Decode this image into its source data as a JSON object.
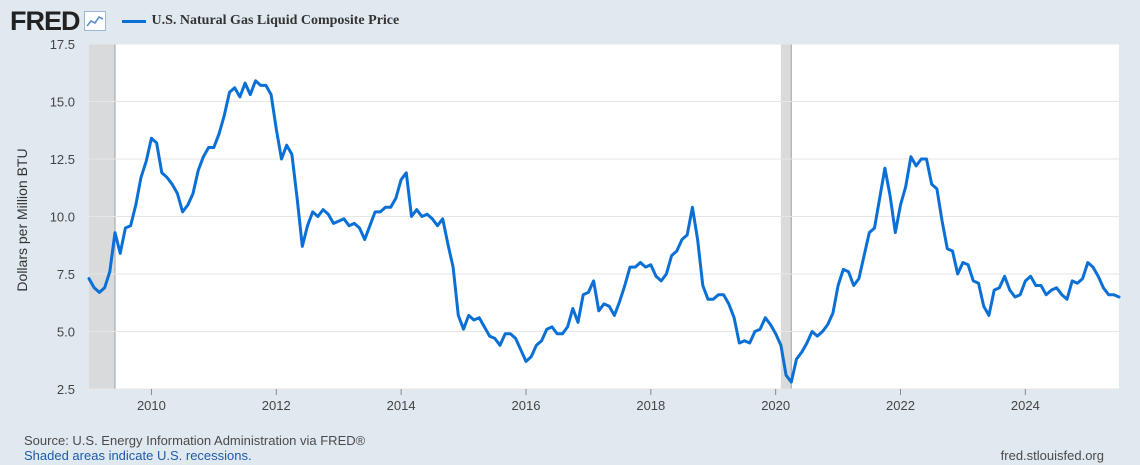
{
  "header": {
    "logo": "FRED",
    "logo_icon": "line-chart-icon"
  },
  "colors": {
    "series": "#0b70d6",
    "recession": "#d9dadb",
    "background": "#e1e9f0",
    "plot": "#ffffff"
  },
  "chart_data": {
    "type": "line",
    "series": [
      {
        "name": "U.S. Natural Gas Liquid Composite Price"
      }
    ],
    "ylabel": "Dollars per Million BTU",
    "xlabel": "",
    "ylim": [
      2.5,
      17.5
    ],
    "xlim": [
      "2009-01",
      "2025-07"
    ],
    "yticks": [
      "2.5",
      "5.0",
      "7.5",
      "10.0",
      "12.5",
      "15.0",
      "17.5"
    ],
    "xticks": [
      "2010",
      "2012",
      "2014",
      "2016",
      "2018",
      "2020",
      "2022",
      "2024"
    ],
    "grid": true,
    "recessions": [
      [
        "2009-01",
        "2009-06"
      ],
      [
        "2020-02",
        "2020-04"
      ]
    ],
    "points": [
      [
        "2009-01",
        7.3
      ],
      [
        "2009-02",
        6.9
      ],
      [
        "2009-03",
        6.7
      ],
      [
        "2009-04",
        6.9
      ],
      [
        "2009-05",
        7.6
      ],
      [
        "2009-06",
        9.3
      ],
      [
        "2009-07",
        8.4
      ],
      [
        "2009-08",
        9.5
      ],
      [
        "2009-09",
        9.6
      ],
      [
        "2009-10",
        10.5
      ],
      [
        "2009-11",
        11.7
      ],
      [
        "2009-12",
        12.4
      ],
      [
        "2010-01",
        13.4
      ],
      [
        "2010-02",
        13.2
      ],
      [
        "2010-03",
        11.9
      ],
      [
        "2010-04",
        11.7
      ],
      [
        "2010-05",
        11.4
      ],
      [
        "2010-06",
        11.0
      ],
      [
        "2010-07",
        10.2
      ],
      [
        "2010-08",
        10.5
      ],
      [
        "2010-09",
        11.0
      ],
      [
        "2010-10",
        12.0
      ],
      [
        "2010-11",
        12.6
      ],
      [
        "2010-12",
        13.0
      ],
      [
        "2011-01",
        13.0
      ],
      [
        "2011-02",
        13.6
      ],
      [
        "2011-03",
        14.4
      ],
      [
        "2011-04",
        15.4
      ],
      [
        "2011-05",
        15.6
      ],
      [
        "2011-06",
        15.2
      ],
      [
        "2011-07",
        15.8
      ],
      [
        "2011-08",
        15.3
      ],
      [
        "2011-09",
        15.9
      ],
      [
        "2011-10",
        15.7
      ],
      [
        "2011-11",
        15.7
      ],
      [
        "2011-12",
        15.3
      ],
      [
        "2012-01",
        13.8
      ],
      [
        "2012-02",
        12.5
      ],
      [
        "2012-03",
        13.1
      ],
      [
        "2012-04",
        12.7
      ],
      [
        "2012-05",
        10.8
      ],
      [
        "2012-06",
        8.7
      ],
      [
        "2012-07",
        9.6
      ],
      [
        "2012-08",
        10.2
      ],
      [
        "2012-09",
        10.0
      ],
      [
        "2012-10",
        10.3
      ],
      [
        "2012-11",
        10.1
      ],
      [
        "2012-12",
        9.7
      ],
      [
        "2013-01",
        9.8
      ],
      [
        "2013-02",
        9.9
      ],
      [
        "2013-03",
        9.6
      ],
      [
        "2013-04",
        9.7
      ],
      [
        "2013-05",
        9.5
      ],
      [
        "2013-06",
        9.0
      ],
      [
        "2013-07",
        9.6
      ],
      [
        "2013-08",
        10.2
      ],
      [
        "2013-09",
        10.2
      ],
      [
        "2013-10",
        10.4
      ],
      [
        "2013-11",
        10.4
      ],
      [
        "2013-12",
        10.8
      ],
      [
        "2014-01",
        11.6
      ],
      [
        "2014-02",
        11.9
      ],
      [
        "2014-03",
        10.0
      ],
      [
        "2014-04",
        10.3
      ],
      [
        "2014-05",
        10.0
      ],
      [
        "2014-06",
        10.1
      ],
      [
        "2014-07",
        9.9
      ],
      [
        "2014-08",
        9.6
      ],
      [
        "2014-09",
        9.9
      ],
      [
        "2014-10",
        8.8
      ],
      [
        "2014-11",
        7.8
      ],
      [
        "2014-12",
        5.7
      ],
      [
        "2015-01",
        5.1
      ],
      [
        "2015-02",
        5.7
      ],
      [
        "2015-03",
        5.5
      ],
      [
        "2015-04",
        5.6
      ],
      [
        "2015-05",
        5.2
      ],
      [
        "2015-06",
        4.8
      ],
      [
        "2015-07",
        4.7
      ],
      [
        "2015-08",
        4.4
      ],
      [
        "2015-09",
        4.9
      ],
      [
        "2015-10",
        4.9
      ],
      [
        "2015-11",
        4.7
      ],
      [
        "2015-12",
        4.2
      ],
      [
        "2016-01",
        3.7
      ],
      [
        "2016-02",
        3.9
      ],
      [
        "2016-03",
        4.4
      ],
      [
        "2016-04",
        4.6
      ],
      [
        "2016-05",
        5.1
      ],
      [
        "2016-06",
        5.2
      ],
      [
        "2016-07",
        4.9
      ],
      [
        "2016-08",
        4.9
      ],
      [
        "2016-09",
        5.2
      ],
      [
        "2016-10",
        6.0
      ],
      [
        "2016-11",
        5.4
      ],
      [
        "2016-12",
        6.6
      ],
      [
        "2017-01",
        6.7
      ],
      [
        "2017-02",
        7.2
      ],
      [
        "2017-03",
        5.9
      ],
      [
        "2017-04",
        6.2
      ],
      [
        "2017-05",
        6.1
      ],
      [
        "2017-06",
        5.7
      ],
      [
        "2017-07",
        6.3
      ],
      [
        "2017-08",
        7.0
      ],
      [
        "2017-09",
        7.8
      ],
      [
        "2017-10",
        7.8
      ],
      [
        "2017-11",
        8.0
      ],
      [
        "2017-12",
        7.8
      ],
      [
        "2018-01",
        7.9
      ],
      [
        "2018-02",
        7.4
      ],
      [
        "2018-03",
        7.2
      ],
      [
        "2018-04",
        7.5
      ],
      [
        "2018-05",
        8.3
      ],
      [
        "2018-06",
        8.5
      ],
      [
        "2018-07",
        9.0
      ],
      [
        "2018-08",
        9.2
      ],
      [
        "2018-09",
        10.4
      ],
      [
        "2018-10",
        9.0
      ],
      [
        "2018-11",
        7.0
      ],
      [
        "2018-12",
        6.4
      ],
      [
        "2019-01",
        6.4
      ],
      [
        "2019-02",
        6.6
      ],
      [
        "2019-03",
        6.6
      ],
      [
        "2019-04",
        6.2
      ],
      [
        "2019-05",
        5.6
      ],
      [
        "2019-06",
        4.5
      ],
      [
        "2019-07",
        4.6
      ],
      [
        "2019-08",
        4.5
      ],
      [
        "2019-09",
        5.0
      ],
      [
        "2019-10",
        5.1
      ],
      [
        "2019-11",
        5.6
      ],
      [
        "2019-12",
        5.3
      ],
      [
        "2020-01",
        4.9
      ],
      [
        "2020-02",
        4.4
      ],
      [
        "2020-03",
        3.1
      ],
      [
        "2020-04",
        2.8
      ],
      [
        "2020-05",
        3.8
      ],
      [
        "2020-06",
        4.1
      ],
      [
        "2020-07",
        4.5
      ],
      [
        "2020-08",
        5.0
      ],
      [
        "2020-09",
        4.8
      ],
      [
        "2020-10",
        5.0
      ],
      [
        "2020-11",
        5.3
      ],
      [
        "2020-12",
        5.8
      ],
      [
        "2021-01",
        7.0
      ],
      [
        "2021-02",
        7.7
      ],
      [
        "2021-03",
        7.6
      ],
      [
        "2021-04",
        7.0
      ],
      [
        "2021-05",
        7.3
      ],
      [
        "2021-06",
        8.3
      ],
      [
        "2021-07",
        9.3
      ],
      [
        "2021-08",
        9.5
      ],
      [
        "2021-09",
        10.8
      ],
      [
        "2021-10",
        12.1
      ],
      [
        "2021-11",
        10.9
      ],
      [
        "2021-12",
        9.3
      ],
      [
        "2022-01",
        10.5
      ],
      [
        "2022-02",
        11.3
      ],
      [
        "2022-03",
        12.6
      ],
      [
        "2022-04",
        12.2
      ],
      [
        "2022-05",
        12.5
      ],
      [
        "2022-06",
        12.5
      ],
      [
        "2022-07",
        11.4
      ],
      [
        "2022-08",
        11.2
      ],
      [
        "2022-09",
        9.8
      ],
      [
        "2022-10",
        8.6
      ],
      [
        "2022-11",
        8.5
      ],
      [
        "2022-12",
        7.5
      ],
      [
        "2023-01",
        8.0
      ],
      [
        "2023-02",
        7.9
      ],
      [
        "2023-03",
        7.2
      ],
      [
        "2023-04",
        7.1
      ],
      [
        "2023-05",
        6.1
      ],
      [
        "2023-06",
        5.7
      ],
      [
        "2023-07",
        6.8
      ],
      [
        "2023-08",
        6.9
      ],
      [
        "2023-09",
        7.4
      ],
      [
        "2023-10",
        6.8
      ],
      [
        "2023-11",
        6.5
      ],
      [
        "2023-12",
        6.6
      ],
      [
        "2024-01",
        7.2
      ],
      [
        "2024-02",
        7.4
      ],
      [
        "2024-03",
        7.0
      ],
      [
        "2024-04",
        7.0
      ],
      [
        "2024-05",
        6.6
      ],
      [
        "2024-06",
        6.8
      ],
      [
        "2024-07",
        6.9
      ],
      [
        "2024-08",
        6.6
      ],
      [
        "2024-09",
        6.4
      ],
      [
        "2024-10",
        7.2
      ],
      [
        "2024-11",
        7.1
      ],
      [
        "2024-12",
        7.3
      ],
      [
        "2025-01",
        8.0
      ],
      [
        "2025-02",
        7.8
      ],
      [
        "2025-03",
        7.4
      ],
      [
        "2025-04",
        6.9
      ],
      [
        "2025-05",
        6.6
      ],
      [
        "2025-06",
        6.6
      ],
      [
        "2025-07",
        6.5
      ]
    ]
  },
  "footer": {
    "source": "Source: U.S. Energy Information Administration via FRED®",
    "recession_note": "Shaded areas indicate U.S. recessions.",
    "site": "fred.stlouisfed.org"
  }
}
